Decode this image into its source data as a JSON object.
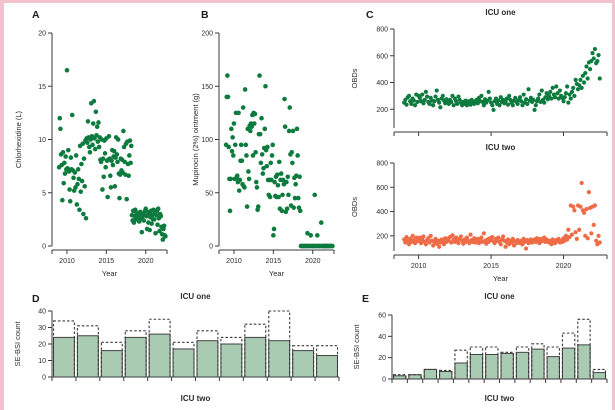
{
  "colors": {
    "green": "#0d7a3e",
    "orange": "#ee6b46",
    "bar_fill": "#a9cbb2",
    "bar_stroke": "#414141",
    "axis": "#3a3a3a",
    "frame_pink": "#f2c3cf"
  },
  "chart_data": [
    {
      "id": "A",
      "panel_label": "A",
      "type": "scatter",
      "title": "",
      "xlabel": "Year",
      "ylabel": "Chlorhexidine (L)",
      "xlim": [
        2008.1,
        2022.7
      ],
      "ylim": [
        0,
        20
      ],
      "xticks": [
        2010,
        2015,
        2020
      ],
      "xtick_labels": [
        "2010",
        "2015",
        "2020"
      ],
      "yticks": [
        0,
        5,
        10,
        15,
        20
      ],
      "show_xtick_labels": true,
      "color_key": "green",
      "start_year": 2009,
      "interval_months": 1,
      "values": [
        7.4,
        12,
        11,
        8.6,
        7.6,
        4.3,
        8.8,
        5.9,
        7.8,
        6.8,
        8.4,
        7.2,
        16.5,
        7.3,
        9,
        7,
        5.3,
        4.2,
        8.3,
        7.2,
        12.3,
        7.1,
        6.4,
        5.2,
        6.9,
        5.5,
        8.5,
        3.9,
        5.8,
        7.2,
        6.3,
        3.4,
        9.4,
        5.1,
        7.7,
        6.1,
        9.6,
        3,
        8.2,
        5.6,
        9.9,
        2.6,
        10.1,
        9.7,
        11.7,
        10.2,
        9.3,
        8.8,
        10,
        13.4,
        10.3,
        9.5,
        11.5,
        13.6,
        10.1,
        9.1,
        12.6,
        10.4,
        11.2,
        9.8,
        11.6,
        9.3,
        10.2,
        8.1,
        7.9,
        10,
        5.3,
        8.2,
        6.5,
        9.9,
        8.7,
        7.4,
        10.1,
        8,
        4.6,
        8.1,
        10.3,
        8.2,
        6.6,
        5.5,
        8,
        9,
        7.6,
        8.4,
        8.9,
        5.6,
        8.3,
        10.2,
        8.6,
        7.9,
        10,
        6.8,
        4.5,
        6.7,
        8.2,
        7.1,
        8.1,
        6.9,
        10.8,
        9.3,
        7.9,
        6.7,
        9.6,
        4.4,
        9.8,
        7.7,
        6.6,
        8.5,
        9.9,
        7.8,
        9.4,
        2.9,
        2.4,
        3.3,
        2.2,
        2.8,
        3.4,
        2.5,
        3.1,
        2.7,
        2.7,
        3.1,
        2.3,
        2.9,
        3.2,
        2.6,
        1.3,
        2.8,
        3,
        2.4,
        2.9,
        3.3,
        3.5,
        2.8,
        1.6,
        3.2,
        2.2,
        3,
        1.5,
        2.7,
        3.3,
        2.1,
        2.9,
        2.5,
        3.4,
        2.5,
        3.1,
        1.2,
        2.9,
        3.3,
        2,
        3.5,
        2.6,
        1.4,
        3,
        2.8,
        1.8,
        1.1,
        0.6,
        1.6,
        1.9,
        1,
        0.9
      ]
    },
    {
      "id": "B",
      "panel_label": "B",
      "type": "scatter",
      "title": "",
      "xlabel": "Year",
      "ylabel": "Mupirocin (2%) ointment (g)",
      "xlim": [
        2008.1,
        2022.7
      ],
      "ylim": [
        0,
        200
      ],
      "xticks": [
        2010,
        2015,
        2020
      ],
      "xtick_labels": [
        "2010",
        "2015",
        "2020"
      ],
      "yticks": [
        0,
        50,
        100,
        150,
        200
      ],
      "show_xtick_labels": true,
      "color_key": "green",
      "start_year": 2009,
      "interval_months": 1,
      "values": [
        95,
        140,
        160,
        140,
        93,
        63,
        33,
        63,
        110,
        89,
        102,
        85,
        115,
        63,
        95,
        125,
        64,
        66,
        60,
        125,
        52,
        62,
        80,
        95,
        80,
        58,
        130,
        56,
        55,
        147,
        95,
        85,
        37,
        110,
        70,
        63,
        113,
        108,
        115,
        112,
        123,
        85,
        125,
        115,
        124,
        88,
        60,
        55,
        34,
        37,
        105,
        160,
        105,
        78,
        120,
        86,
        68,
        73,
        92,
        110,
        150,
        90,
        75,
        93,
        62,
        48,
        62,
        46,
        78,
        62,
        85,
        95,
        10,
        16,
        60,
        47,
        65,
        46,
        67,
        57,
        46,
        79,
        35,
        62,
        68,
        33,
        48,
        62,
        58,
        138,
        112,
        32,
        60,
        35,
        65,
        48,
        108,
        130,
        86,
        38,
        88,
        78,
        108,
        36,
        64,
        45,
        58,
        66,
        110,
        85,
        45,
        36,
        65,
        33,
        0,
        0,
        0,
        0,
        0,
        0,
        0,
        0,
        0,
        0,
        12,
        0,
        0,
        0,
        0,
        10,
        0,
        0,
        0,
        0,
        0,
        48,
        0,
        0,
        0,
        10,
        0,
        0,
        0,
        0,
        0,
        22,
        0,
        0,
        0,
        0,
        0,
        0,
        0,
        0,
        0,
        0,
        0,
        0,
        0,
        0,
        0,
        0,
        0
      ]
    },
    {
      "id": "C1",
      "panel_label": "C",
      "type": "scatter",
      "title": "ICU one",
      "xlabel": "",
      "ylabel": "OBDs",
      "xlim": [
        2008.3,
        2023.0
      ],
      "ylim": [
        60,
        800
      ],
      "xticks": [
        2010,
        2015,
        2020
      ],
      "xtick_labels": [
        "2010",
        "2015",
        "2020"
      ],
      "yticks": [
        200,
        400,
        600,
        800
      ],
      "show_xtick_labels": false,
      "color_key": "green",
      "start_year": 2009,
      "interval_months": 1,
      "values": [
        250,
        270,
        235,
        290,
        300,
        260,
        240,
        280,
        265,
        230,
        310,
        255,
        300,
        285,
        260,
        310,
        245,
        270,
        330,
        295,
        255,
        240,
        285,
        265,
        230,
        260,
        295,
        340,
        270,
        250,
        215,
        280,
        300,
        265,
        245,
        275,
        260,
        240,
        270,
        255,
        300,
        230,
        280,
        260,
        240,
        295,
        270,
        250,
        230,
        255,
        240,
        265,
        230,
        245,
        260,
        235,
        270,
        250,
        240,
        260,
        270,
        245,
        285,
        260,
        300,
        255,
        230,
        275,
        250,
        265,
        330,
        280,
        250,
        230,
        195,
        260,
        280,
        240,
        265,
        230,
        290,
        255,
        270,
        245,
        260,
        280,
        235,
        300,
        270,
        250,
        230,
        265,
        285,
        255,
        240,
        270,
        290,
        260,
        230,
        310,
        250,
        275,
        240,
        350,
        265,
        285,
        255,
        270,
        195,
        230,
        260,
        280,
        310,
        255,
        340,
        270,
        250,
        290,
        320,
        275,
        300,
        330,
        280,
        360,
        310,
        290,
        370,
        320,
        280,
        340,
        300,
        285,
        260,
        290,
        320,
        370,
        250,
        310,
        280,
        330,
        360,
        300,
        420,
        390,
        350,
        380,
        420,
        360,
        450,
        400,
        470,
        520,
        430,
        550,
        500,
        560,
        620,
        580,
        650,
        545,
        560,
        605,
        430
      ]
    },
    {
      "id": "C2",
      "panel_label": "",
      "type": "scatter",
      "title": "ICU two",
      "xlabel": "Year",
      "ylabel": "OBDs",
      "xlim": [
        2008.3,
        2023.0
      ],
      "ylim": [
        75,
        800
      ],
      "xticks": [
        2010,
        2015,
        2020
      ],
      "xtick_labels": [
        "2010",
        "2015",
        "2020"
      ],
      "yticks": [
        200,
        400,
        600,
        800
      ],
      "show_xtick_labels": true,
      "color_key": "orange",
      "start_year": 2009,
      "interval_months": 1,
      "values": [
        170,
        145,
        190,
        160,
        130,
        175,
        150,
        200,
        165,
        140,
        185,
        155,
        160,
        185,
        140,
        170,
        195,
        150,
        130,
        165,
        180,
        145,
        200,
        160,
        120,
        150,
        175,
        135,
        160,
        110,
        145,
        170,
        155,
        130,
        180,
        150,
        175,
        160,
        190,
        145,
        205,
        170,
        150,
        185,
        160,
        140,
        175,
        195,
        160,
        135,
        170,
        150,
        185,
        160,
        140,
        210,
        165,
        150,
        180,
        145,
        155,
        175,
        140,
        165,
        185,
        150,
        220,
        160,
        135,
        170,
        150,
        180,
        165,
        190,
        155,
        140,
        175,
        160,
        185,
        150,
        130,
        170,
        195,
        160,
        110,
        145,
        170,
        130,
        160,
        145,
        175,
        120,
        155,
        140,
        165,
        150,
        140,
        160,
        130,
        175,
        150,
        95,
        165,
        140,
        155,
        170,
        145,
        160,
        170,
        150,
        180,
        160,
        140,
        175,
        155,
        165,
        185,
        150,
        170,
        160,
        145,
        160,
        130,
        170,
        150,
        140,
        165,
        155,
        175,
        145,
        160,
        150,
        180,
        160,
        200,
        170,
        250,
        190,
        450,
        210,
        440,
        410,
        230,
        175,
        450,
        250,
        440,
        635,
        410,
        390,
        200,
        420,
        180,
        560,
        430,
        220,
        440,
        290,
        450,
        160,
        130,
        200,
        145
      ]
    },
    {
      "id": "D",
      "panel_label": "D",
      "type": "bar",
      "title": "ICU one",
      "caption_below": "ICU two",
      "ylabel": "SE-BSI count",
      "ylim": [
        0,
        40
      ],
      "yticks": [
        0,
        10,
        20,
        30,
        40
      ],
      "fill_key": "bar_fill",
      "values_solid": [
        24,
        25,
        16,
        24,
        26,
        17,
        22,
        20,
        24,
        22,
        16,
        13
      ],
      "values_dashed": [
        34,
        31,
        21,
        28,
        35,
        21,
        28,
        24,
        32,
        40,
        19,
        19
      ]
    },
    {
      "id": "E",
      "panel_label": "E",
      "type": "bar",
      "title": "ICU one",
      "caption_below": "ICU two",
      "ylabel": "SE-BSI count",
      "ylim": [
        0,
        60
      ],
      "yticks": [
        0,
        20,
        40,
        60
      ],
      "fill_key": "bar_fill",
      "values_solid": [
        3,
        4,
        9,
        7,
        15,
        23,
        23,
        24,
        25,
        28,
        21,
        29,
        32,
        6
      ],
      "values_dashed": [
        4,
        4,
        9,
        8,
        27,
        30,
        30,
        25,
        30,
        33,
        30,
        43,
        56,
        9
      ]
    }
  ]
}
